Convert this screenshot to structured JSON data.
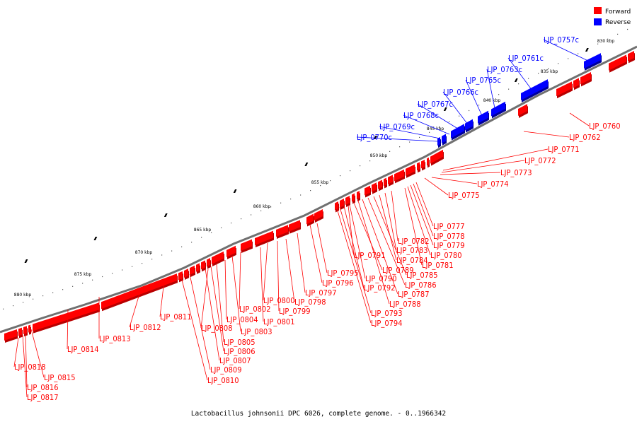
{
  "colors": {
    "forward": "#ff0000",
    "reverse": "#0000ff",
    "forward_dark": "#b80000",
    "reverse_dark": "#00009a",
    "backbone": "#707070"
  },
  "legend": {
    "forward_label": "Forward",
    "reverse_label": "Reverse"
  },
  "caption": "Lactobacillus johnsonii DPC 6026, complete genome. - 0..1966342",
  "scale_labels": [
    "830 kbp",
    "835 kbp",
    "840 kbp",
    "845 kbp",
    "850 kbp",
    "855 kbp",
    "860 kbp",
    "865 kbp",
    "870 kbp",
    "875 kbp",
    "880 kbp"
  ],
  "reverse_labels": [
    "LJP_0757c",
    "LJP_0761c",
    "LJP_0763c",
    "LJP_0765c",
    "LJP_0766c",
    "LJP_0767c",
    "LJP_0768c",
    "LJP_0769c",
    "LJP_0770c"
  ],
  "forward_labels": [
    "LJP_0760",
    "LJP_0762",
    "LJP_0771",
    "LJP_0772",
    "LJP_0773",
    "LJP_0774",
    "LJP_0775",
    "LJP_0777",
    "LJP_0778",
    "LJP_0779",
    "LJP_0780",
    "LJP_0781",
    "LJP_0782",
    "LJP_0783",
    "LJP_0784",
    "LJP_0785",
    "LJP_0786",
    "LJP_0787",
    "LJP_0788",
    "LJP_0789",
    "LJP_0790",
    "LJP_0791",
    "LJP_0792",
    "LJP_0793",
    "LJP_0794",
    "LJP_0795",
    "LJP_0796",
    "LJP_0797",
    "LJP_0798",
    "LJP_0799",
    "LJP_0800",
    "LJP_0801",
    "LJP_0802",
    "LJP_0803",
    "LJP_0804",
    "LJP_0805",
    "LJP_0806",
    "LJP_0807",
    "LJP_0808",
    "LJP_0809",
    "LJP_0810",
    "LJP_0811",
    "LJP_0812",
    "LJP_0813",
    "LJP_0814",
    "LJP_0815",
    "LJP_0816",
    "LJP_0817",
    "LJP_0818"
  ]
}
